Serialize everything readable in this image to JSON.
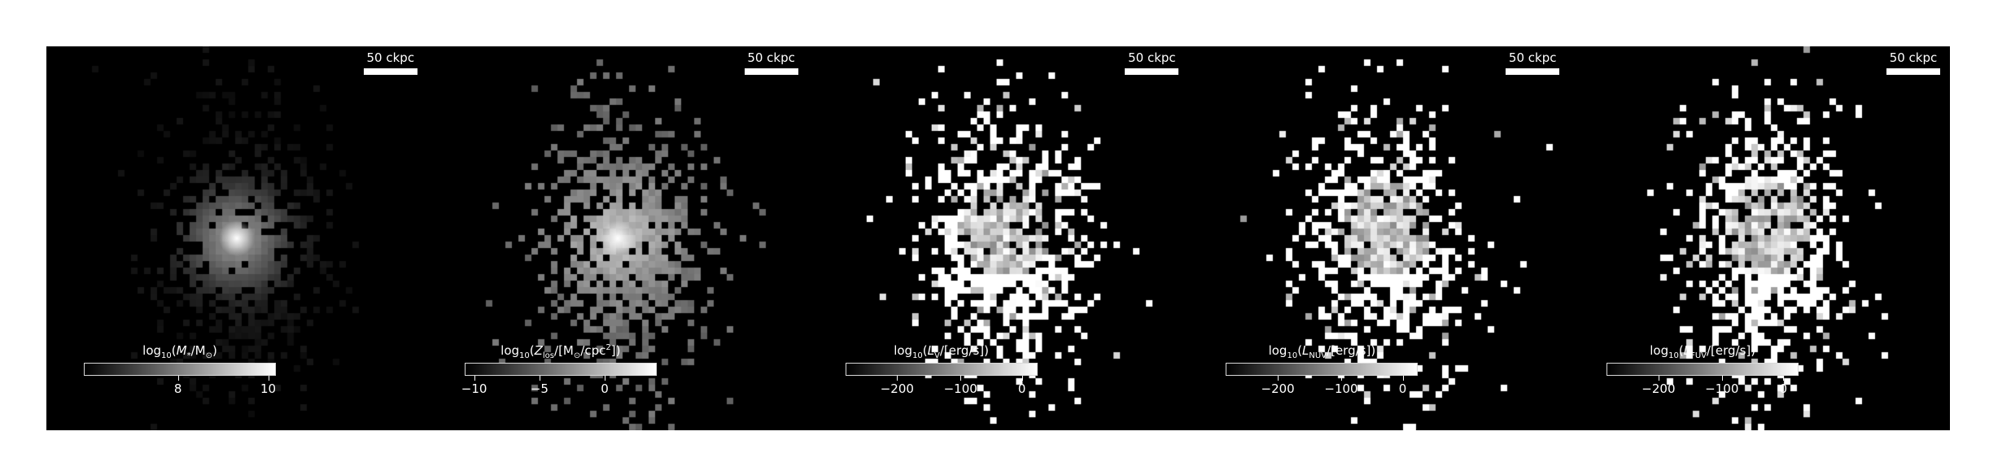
{
  "scalebar_label": "50 ckpc",
  "panels": [
    {
      "id": "stellar-mass",
      "cbar": {
        "title_prefix": "log",
        "title_sub": "10",
        "title_open": "(",
        "title_var": "M",
        "title_var_sub": "*",
        "title_rest": "/M",
        "title_rest_sub": "⊙",
        "title_close": ")",
        "ticks": [
          {
            "value": "8",
            "frac": 0.49
          },
          {
            "value": "10",
            "frac": 0.96
          }
        ]
      },
      "style": "smooth"
    },
    {
      "id": "metallicity",
      "cbar": {
        "title_prefix": "log",
        "title_sub": "10",
        "title_open": "(",
        "title_var": "Z",
        "title_var_sub": "los",
        "title_rest": "/[M",
        "title_rest_sub": "⊙",
        "title_tail": "/cpc",
        "title_tail_sup": "2",
        "title_close": "])",
        "ticks": [
          {
            "value": "−10",
            "frac": 0.05
          },
          {
            "value": "−5",
            "frac": 0.39
          },
          {
            "value": "0",
            "frac": 0.73
          }
        ]
      },
      "style": "gray"
    },
    {
      "id": "v-band",
      "cbar": {
        "title_prefix": "log",
        "title_sub": "10",
        "title_open": "(",
        "title_var": "L",
        "title_var_sub": "V",
        "title_rest": "/[erg/s])",
        "ticks": [
          {
            "value": "−200",
            "frac": 0.27
          },
          {
            "value": "−100",
            "frac": 0.6
          },
          {
            "value": "0",
            "frac": 0.92
          }
        ]
      },
      "style": "binary"
    },
    {
      "id": "nuv-band",
      "cbar": {
        "title_prefix": "log",
        "title_sub": "10",
        "title_open": "(",
        "title_var": "L",
        "title_var_sub": "NUV",
        "title_rest": "/[erg/s])",
        "ticks": [
          {
            "value": "−200",
            "frac": 0.27
          },
          {
            "value": "−100",
            "frac": 0.6
          },
          {
            "value": "0",
            "frac": 0.92
          }
        ]
      },
      "style": "binary"
    },
    {
      "id": "fuv-band",
      "cbar": {
        "title_prefix": "log",
        "title_sub": "10",
        "title_open": "(",
        "title_var": "L",
        "title_var_sub": "FUV",
        "title_rest": "/[erg/s])",
        "ticks": [
          {
            "value": "−200",
            "frac": 0.27
          },
          {
            "value": "−100",
            "frac": 0.6
          },
          {
            "value": "0",
            "frac": 0.92
          }
        ]
      },
      "style": "binary"
    }
  ]
}
